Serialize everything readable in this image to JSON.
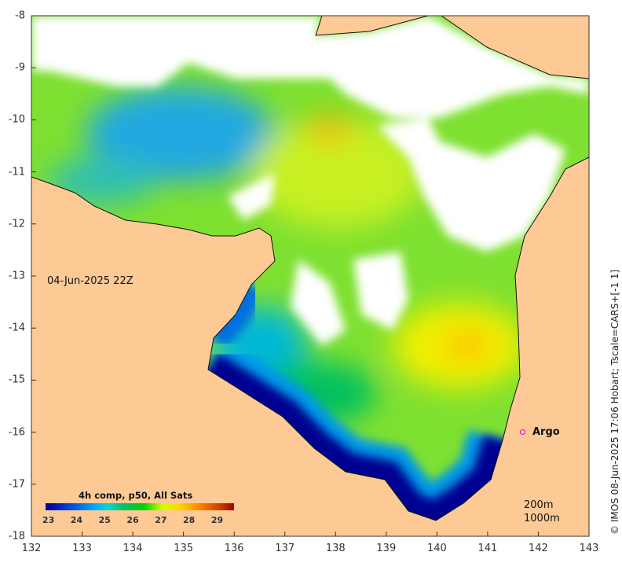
{
  "map": {
    "lon_ticks": [
      "132",
      "133",
      "134",
      "135",
      "136",
      "137",
      "138",
      "139",
      "140",
      "141",
      "142",
      "143"
    ],
    "lat_ticks": [
      "-8",
      "-9",
      "-10",
      "-11",
      "-12",
      "-13",
      "-14",
      "-15",
      "-16",
      "-17",
      "-18"
    ],
    "lon_range": [
      132,
      143
    ],
    "lat_range": [
      -8,
      -18
    ],
    "timestamp": "04-Jun-2025 22Z",
    "credit": "© IMOS 08-Jun-2025 17:06 Hobart; Tscale=CARS+[-1 1]",
    "land_color": "#fdca96",
    "argo": {
      "label": "Argo",
      "lon": 141.7,
      "lat": -16.0,
      "color": "#e000e0"
    },
    "isobaths": [
      "200m",
      "1000m"
    ]
  },
  "colorbar": {
    "title": "4h comp, p50, All Sats",
    "ticks": [
      "23",
      "24",
      "25",
      "26",
      "27",
      "28",
      "29"
    ],
    "range": [
      22.9,
      29.6
    ]
  }
}
